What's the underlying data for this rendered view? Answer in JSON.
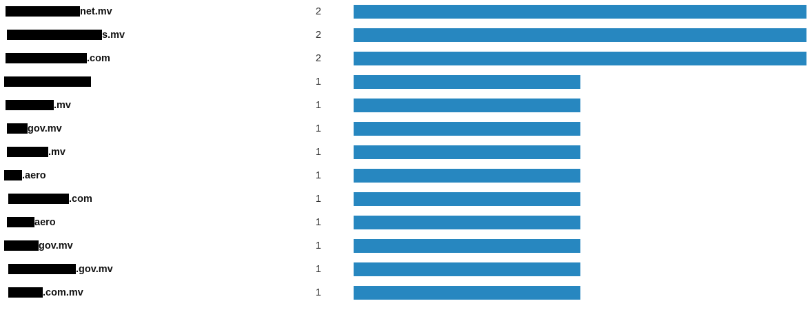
{
  "chart_data": {
    "type": "bar",
    "orientation": "horizontal",
    "title": "",
    "xlabel": "",
    "ylabel": "",
    "xlim": [
      0,
      2
    ],
    "grid": false,
    "bar_color": "#2787c0",
    "redaction_color": "#000000",
    "categories": [
      "net.mv",
      "s.mv",
      ".com",
      "",
      ".mv",
      "gov.mv",
      ".mv",
      ".aero",
      ".com",
      "aero",
      "gov.mv",
      ".gov.mv",
      ".com.mv"
    ],
    "values": [
      2,
      2,
      2,
      1,
      1,
      1,
      1,
      1,
      1,
      1,
      1,
      1,
      1
    ],
    "redacted": [
      true,
      true,
      true,
      true,
      true,
      true,
      true,
      true,
      true,
      true,
      true,
      true,
      true
    ]
  }
}
